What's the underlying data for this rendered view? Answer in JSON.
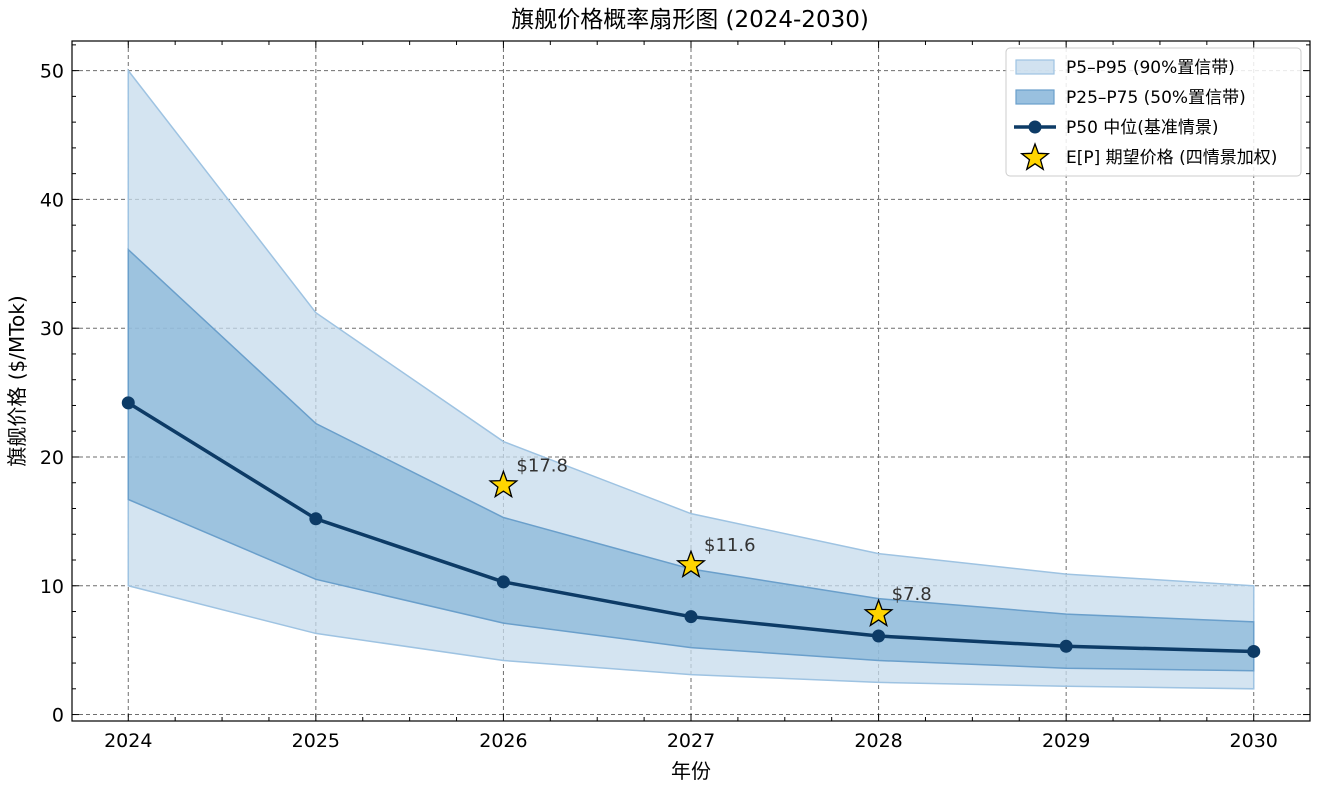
{
  "chart_data": {
    "type": "line",
    "title": "旗舰价格概率扇形图 (2024-2030)",
    "xlabel": "年份",
    "ylabel": "旗舰价格 ($/MTok)",
    "x": [
      2024,
      2025,
      2026,
      2027,
      2028,
      2029,
      2030
    ],
    "xlim": [
      2023.7,
      2030.3
    ],
    "ylim": [
      -0.5,
      52.3
    ],
    "yticks": [
      0,
      10,
      20,
      30,
      40,
      50
    ],
    "grid": true,
    "legend_position": "top-right",
    "series": [
      {
        "name": "P5–P95 (90%置信带)",
        "kind": "band",
        "lower": [
          10.0,
          6.3,
          4.2,
          3.1,
          2.5,
          2.2,
          2.0
        ],
        "upper": [
          50.0,
          31.2,
          21.2,
          15.6,
          12.5,
          10.9,
          10.0
        ],
        "color": "#c6dbec"
      },
      {
        "name": "P25–P75 (50%置信带)",
        "kind": "band",
        "lower": [
          16.7,
          10.5,
          7.1,
          5.2,
          4.2,
          3.6,
          3.4
        ],
        "upper": [
          36.1,
          22.6,
          15.3,
          11.3,
          9.0,
          7.8,
          7.2
        ],
        "color": "#8ab6d8"
      },
      {
        "name": "P50 中位(基准情景)",
        "kind": "line",
        "values": [
          24.2,
          15.2,
          10.3,
          7.6,
          6.1,
          5.3,
          4.9
        ],
        "color": "#0d3b66"
      },
      {
        "name": "E[P] 期望价格 (四情景加权)",
        "kind": "marker",
        "x": [
          2026,
          2027,
          2028
        ],
        "values": [
          17.8,
          11.6,
          7.8
        ],
        "labels": [
          "$17.8",
          "$11.6",
          "$7.8"
        ],
        "color": "#ffd500"
      }
    ]
  }
}
